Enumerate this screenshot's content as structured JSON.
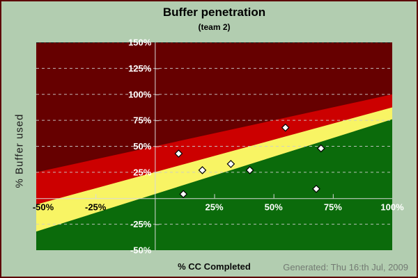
{
  "window": {
    "kind": "fever-chart-report"
  },
  "footer": {
    "text": "Generated: Thu 16:th Jul, 2009"
  },
  "colors": {
    "page_bg": "#b2cdb0",
    "frame": "#5c0000",
    "title_text": "#000000",
    "x_axis_title_text": "#0a0a0a",
    "y_axis_title_text": "#1c1c1c",
    "footer_text": "#737a73"
  },
  "chart_data": {
    "type": "scatter",
    "title": "Buffer penetration",
    "subtitle": "(team 2)",
    "xlabel": "% CC Completed",
    "ylabel": "% Buffer used",
    "xlim": [
      -50,
      100
    ],
    "ylim": [
      -50,
      150
    ],
    "grid": "horizontal-dashed",
    "legend": "none",
    "axis_color": "#d9d9d9",
    "tick_label_color_y": "#ffffff",
    "gridlines": {
      "dashed_light": [
        125,
        100,
        75,
        50,
        25,
        -25
      ],
      "dashed_dark_top": 150,
      "color": "#cccccc"
    },
    "x_tick_marks": [
      -25,
      25,
      50,
      75
    ],
    "y_tick_marks": [
      125,
      100,
      75,
      50,
      25,
      -25
    ],
    "x_tick_labels": [
      {
        "value": -50,
        "label": "-50%",
        "color": "#000000",
        "dx": 10
      },
      {
        "value": -25,
        "label": "-25%",
        "color": "#000000",
        "dx": 0
      },
      {
        "value": 25,
        "label": "25%",
        "color": "#ffffff",
        "dx": 0
      },
      {
        "value": 50,
        "label": "50%",
        "color": "#ffffff",
        "dx": 0
      },
      {
        "value": 75,
        "label": "75%",
        "color": "#ffffff",
        "dx": 0
      },
      {
        "value": 100,
        "label": "100%",
        "color": "#ffffff",
        "dx": 0
      }
    ],
    "y_tick_labels": [
      {
        "value": 150,
        "label": "150%"
      },
      {
        "value": 125,
        "label": "125%"
      },
      {
        "value": 100,
        "label": "100%"
      },
      {
        "value": 75,
        "label": "75%"
      },
      {
        "value": 50,
        "label": "50%"
      },
      {
        "value": 25,
        "label": "25%"
      },
      {
        "value": -25,
        "label": "-25%"
      },
      {
        "value": -50,
        "label": "-50%"
      }
    ],
    "zones": {
      "background_color": "#660000",
      "bands": [
        {
          "name": "red-zone",
          "color": "#cc0000",
          "top_line": {
            "x": [
              -50,
              100
            ],
            "y": [
              25,
              100
            ]
          }
        },
        {
          "name": "yellow-zone",
          "color": "#f8f464",
          "top_line": {
            "x": [
              -50,
              100
            ],
            "y": [
              -6,
              87.5
            ]
          }
        },
        {
          "name": "green-zone",
          "color": "#0b6b0b",
          "top_line": {
            "x": [
              -50,
              100
            ],
            "y": [
              -32,
              76
            ]
          }
        }
      ]
    },
    "marker": {
      "shape": "diamond",
      "fill": "#ffffff",
      "stroke": "#000000",
      "size": 10
    },
    "points": [
      {
        "x": 10,
        "y": 43
      },
      {
        "x": 12,
        "y": 4
      },
      {
        "x": 20,
        "y": 27
      },
      {
        "x": 32,
        "y": 33
      },
      {
        "x": 40,
        "y": 27
      },
      {
        "x": 55,
        "y": 68
      },
      {
        "x": 68,
        "y": 9
      },
      {
        "x": 70,
        "y": 48
      }
    ]
  }
}
